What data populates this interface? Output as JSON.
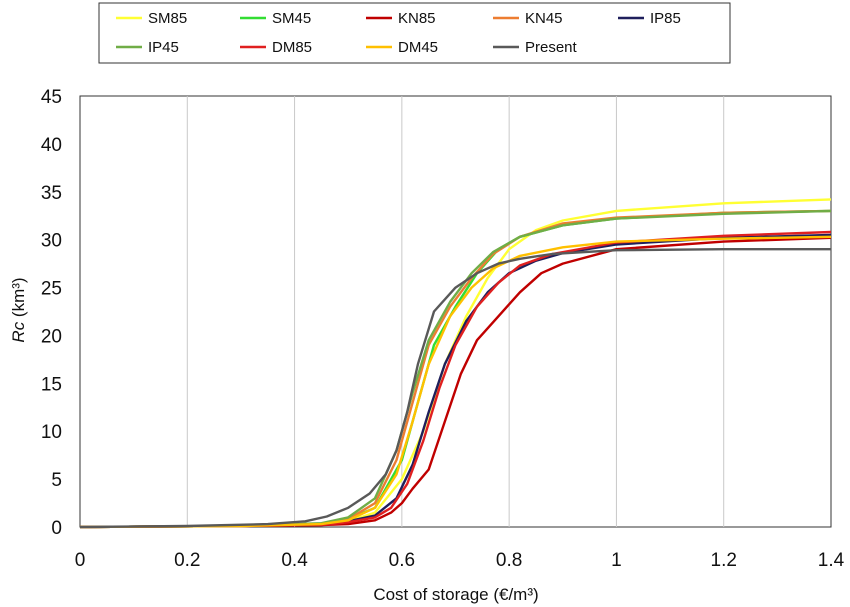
{
  "chart_data": {
    "type": "line",
    "xlabel": "Cost of storage (€/m³)",
    "ylabel_main": "Rc",
    "ylabel_unit": " (km³)",
    "xlim": [
      0,
      1.4
    ],
    "ylim": [
      0,
      45
    ],
    "x_ticks": [
      "0",
      "0.2",
      "0.4",
      "0.6",
      "0.8",
      "1",
      "1.2",
      "1.4"
    ],
    "y_ticks": [
      "0",
      "5",
      "10",
      "15",
      "20",
      "25",
      "30",
      "35",
      "40",
      "45"
    ],
    "grid": "vertical",
    "legend_position": "top",
    "series": [
      {
        "name": "SM85",
        "color": "#ffff33",
        "points": [
          [
            0,
            0
          ],
          [
            0.3,
            0.1
          ],
          [
            0.45,
            0.3
          ],
          [
            0.5,
            0.6
          ],
          [
            0.55,
            1.5
          ],
          [
            0.6,
            5
          ],
          [
            0.64,
            10
          ],
          [
            0.68,
            17
          ],
          [
            0.72,
            22
          ],
          [
            0.76,
            26
          ],
          [
            0.8,
            29
          ],
          [
            0.85,
            31
          ],
          [
            0.9,
            32
          ],
          [
            1.0,
            33
          ],
          [
            1.2,
            33.8
          ],
          [
            1.4,
            34.2
          ]
        ]
      },
      {
        "name": "SM45",
        "color": "#33dd33",
        "points": [
          [
            0,
            0
          ],
          [
            0.3,
            0.1
          ],
          [
            0.45,
            0.3
          ],
          [
            0.5,
            0.8
          ],
          [
            0.55,
            2
          ],
          [
            0.6,
            7
          ],
          [
            0.63,
            13
          ],
          [
            0.66,
            19
          ],
          [
            0.7,
            23
          ],
          [
            0.74,
            26.5
          ],
          [
            0.78,
            29
          ],
          [
            0.82,
            30.3
          ],
          [
            0.9,
            31.5
          ],
          [
            1.0,
            32.2
          ],
          [
            1.2,
            32.8
          ],
          [
            1.4,
            33
          ]
        ]
      },
      {
        "name": "KN85",
        "color": "#c00000",
        "points": [
          [
            0,
            0
          ],
          [
            0.3,
            0.1
          ],
          [
            0.45,
            0.2
          ],
          [
            0.5,
            0.3
          ],
          [
            0.55,
            0.7
          ],
          [
            0.58,
            1.5
          ],
          [
            0.6,
            2.5
          ],
          [
            0.62,
            4
          ],
          [
            0.65,
            6
          ],
          [
            0.68,
            11
          ],
          [
            0.71,
            16
          ],
          [
            0.74,
            19.5
          ],
          [
            0.78,
            22
          ],
          [
            0.82,
            24.5
          ],
          [
            0.86,
            26.5
          ],
          [
            0.9,
            27.5
          ],
          [
            1.0,
            29
          ],
          [
            1.2,
            29.8
          ],
          [
            1.4,
            30.2
          ]
        ]
      },
      {
        "name": "KN45",
        "color": "#ed7d31",
        "points": [
          [
            0,
            0
          ],
          [
            0.3,
            0.1
          ],
          [
            0.45,
            0.3
          ],
          [
            0.5,
            0.8
          ],
          [
            0.55,
            2.5
          ],
          [
            0.59,
            7
          ],
          [
            0.62,
            13
          ],
          [
            0.65,
            19
          ],
          [
            0.69,
            23
          ],
          [
            0.73,
            26
          ],
          [
            0.77,
            28.5
          ],
          [
            0.82,
            30.3
          ],
          [
            0.9,
            31.7
          ],
          [
            1.0,
            32.3
          ],
          [
            1.2,
            32.8
          ],
          [
            1.4,
            33
          ]
        ]
      },
      {
        "name": "IP85",
        "color": "#1f1f5c",
        "points": [
          [
            0,
            0
          ],
          [
            0.3,
            0.1
          ],
          [
            0.45,
            0.3
          ],
          [
            0.5,
            0.6
          ],
          [
            0.55,
            1.2
          ],
          [
            0.59,
            3
          ],
          [
            0.62,
            6.5
          ],
          [
            0.65,
            12
          ],
          [
            0.68,
            17
          ],
          [
            0.72,
            21.5
          ],
          [
            0.76,
            24.5
          ],
          [
            0.8,
            26.5
          ],
          [
            0.85,
            27.8
          ],
          [
            0.9,
            28.6
          ],
          [
            1.0,
            29.5
          ],
          [
            1.2,
            30.2
          ],
          [
            1.4,
            30.5
          ]
        ]
      },
      {
        "name": "IP45",
        "color": "#70ad47",
        "points": [
          [
            0,
            0
          ],
          [
            0.3,
            0.1
          ],
          [
            0.45,
            0.4
          ],
          [
            0.5,
            1
          ],
          [
            0.55,
            3
          ],
          [
            0.59,
            8
          ],
          [
            0.62,
            14
          ],
          [
            0.65,
            19.5
          ],
          [
            0.69,
            23.5
          ],
          [
            0.73,
            26.5
          ],
          [
            0.77,
            28.7
          ],
          [
            0.82,
            30.3
          ],
          [
            0.9,
            31.5
          ],
          [
            1.0,
            32.2
          ],
          [
            1.2,
            32.7
          ],
          [
            1.4,
            33
          ]
        ]
      },
      {
        "name": "DM85",
        "color": "#e02020",
        "points": [
          [
            0,
            0
          ],
          [
            0.3,
            0.1
          ],
          [
            0.45,
            0.2
          ],
          [
            0.5,
            0.5
          ],
          [
            0.55,
            1
          ],
          [
            0.58,
            2
          ],
          [
            0.61,
            4.5
          ],
          [
            0.64,
            9
          ],
          [
            0.67,
            14.5
          ],
          [
            0.7,
            19
          ],
          [
            0.74,
            23
          ],
          [
            0.78,
            25.5
          ],
          [
            0.82,
            27.3
          ],
          [
            0.88,
            28.5
          ],
          [
            1.0,
            29.7
          ],
          [
            1.2,
            30.4
          ],
          [
            1.4,
            30.8
          ]
        ]
      },
      {
        "name": "DM45",
        "color": "#ffc000",
        "points": [
          [
            0,
            0
          ],
          [
            0.3,
            0.1
          ],
          [
            0.45,
            0.3
          ],
          [
            0.5,
            0.7
          ],
          [
            0.55,
            2
          ],
          [
            0.59,
            5.5
          ],
          [
            0.62,
            11
          ],
          [
            0.65,
            17
          ],
          [
            0.69,
            22
          ],
          [
            0.73,
            25
          ],
          [
            0.77,
            27
          ],
          [
            0.82,
            28.3
          ],
          [
            0.9,
            29.2
          ],
          [
            1.0,
            29.8
          ],
          [
            1.2,
            30.1
          ],
          [
            1.4,
            30.3
          ]
        ]
      },
      {
        "name": "Present",
        "color": "#595959",
        "points": [
          [
            0,
            0
          ],
          [
            0.2,
            0.1
          ],
          [
            0.35,
            0.3
          ],
          [
            0.42,
            0.6
          ],
          [
            0.46,
            1.1
          ],
          [
            0.5,
            2
          ],
          [
            0.54,
            3.5
          ],
          [
            0.57,
            5.5
          ],
          [
            0.59,
            8
          ],
          [
            0.61,
            12
          ],
          [
            0.63,
            17
          ],
          [
            0.66,
            22.5
          ],
          [
            0.7,
            25
          ],
          [
            0.74,
            26.5
          ],
          [
            0.78,
            27.5
          ],
          [
            0.82,
            28
          ],
          [
            0.88,
            28.5
          ],
          [
            1.0,
            28.9
          ],
          [
            1.2,
            29
          ],
          [
            1.4,
            29
          ]
        ]
      }
    ]
  }
}
